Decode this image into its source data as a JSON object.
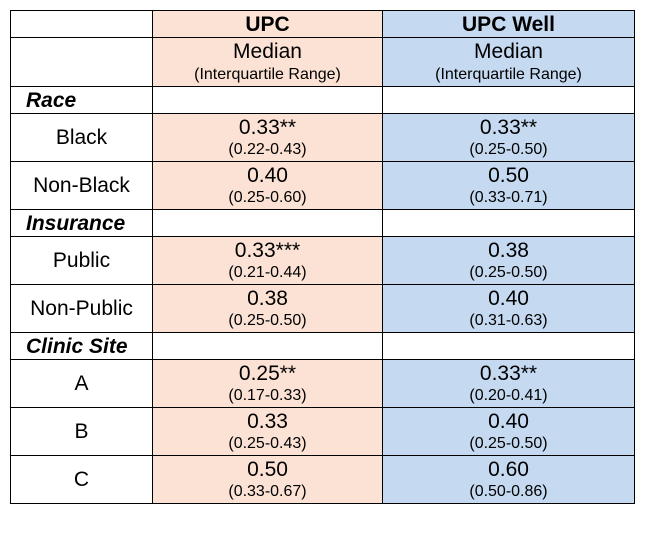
{
  "header": {
    "col1": "UPC",
    "col2": "UPC Well",
    "sub_main": "Median",
    "sub_small": "(Interquartile Range)"
  },
  "sections": [
    {
      "label": "Race",
      "rows": [
        {
          "label": "Black",
          "upc_median": "0.33**",
          "upc_iqr": "(0.22-0.43)",
          "well_median": "0.33**",
          "well_iqr": "(0.25-0.50)"
        },
        {
          "label": "Non-Black",
          "upc_median": "0.40",
          "upc_iqr": "(0.25-0.60)",
          "well_median": "0.50",
          "well_iqr": "(0.33-0.71)"
        }
      ]
    },
    {
      "label": "Insurance",
      "rows": [
        {
          "label": "Public",
          "upc_median": "0.33***",
          "upc_iqr": "(0.21-0.44)",
          "well_median": "0.38",
          "well_iqr": "(0.25-0.50)"
        },
        {
          "label": "Non-Public",
          "upc_median": "0.38",
          "upc_iqr": "(0.25-0.50)",
          "well_median": "0.40",
          "well_iqr": "(0.31-0.63)"
        }
      ]
    },
    {
      "label": "Clinic Site",
      "rows": [
        {
          "label": "A",
          "upc_median": "0.25**",
          "upc_iqr": "(0.17-0.33)",
          "well_median": "0.33**",
          "well_iqr": "(0.20-0.41)"
        },
        {
          "label": "B",
          "upc_median": "0.33",
          "upc_iqr": "(0.25-0.43)",
          "well_median": "0.40",
          "well_iqr": "(0.25-0.50)"
        },
        {
          "label": "C",
          "upc_median": "0.50",
          "upc_iqr": "(0.33-0.67)",
          "well_median": "0.60",
          "well_iqr": "(0.50-0.86)"
        }
      ]
    }
  ],
  "colors": {
    "upc_fill": "#fbe2d5",
    "well_fill": "#c5d9f1",
    "border": "#000000"
  }
}
